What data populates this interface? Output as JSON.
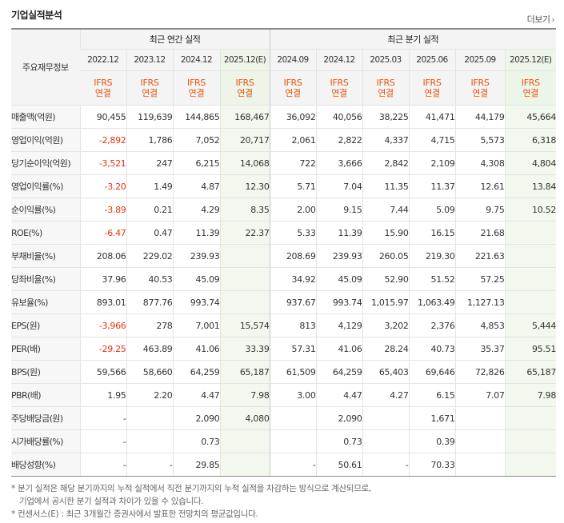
{
  "title": "기업실적분석",
  "more_label": "더보기",
  "header": {
    "row_label": "주요재무정보",
    "annual_label": "최근 연간 실적",
    "quarter_label": "최근 분기 실적",
    "annual_periods": [
      "2022.12",
      "2023.12",
      "2024.12",
      "2025.12(E)"
    ],
    "quarter_periods": [
      "2024.09",
      "2024.12",
      "2025.03",
      "2025.06",
      "2025.09",
      "2025.12(E)"
    ],
    "ifrs_top": "IFRS",
    "ifrs_bottom": "연결"
  },
  "rows": [
    {
      "name": "매출액(억원)",
      "values": [
        "90,455",
        "119,639",
        "144,865",
        "168,467",
        "36,092",
        "40,056",
        "38,225",
        "41,471",
        "44,179",
        "45,664"
      ]
    },
    {
      "name": "영업이익(억원)",
      "values": [
        "-2,892",
        "1,786",
        "7,052",
        "20,717",
        "2,061",
        "2,822",
        "4,337",
        "4,715",
        "5,573",
        "6,318"
      ]
    },
    {
      "name": "당기순이익(억원)",
      "values": [
        "-3,521",
        "247",
        "6,215",
        "14,068",
        "722",
        "3,666",
        "2,842",
        "2,109",
        "4,308",
        "4,804"
      ]
    },
    {
      "name": "영업이익률(%)",
      "values": [
        "-3.20",
        "1.49",
        "4.87",
        "12.30",
        "5.71",
        "7.04",
        "11.35",
        "11.37",
        "12.61",
        "13.84"
      ]
    },
    {
      "name": "순이익률(%)",
      "values": [
        "-3.89",
        "0.21",
        "4.29",
        "8.35",
        "2.00",
        "9.15",
        "7.44",
        "5.09",
        "9.75",
        "10.52"
      ]
    },
    {
      "name": "ROE(%)",
      "values": [
        "-6.47",
        "0.47",
        "11.39",
        "22.37",
        "5.33",
        "11.39",
        "15.90",
        "16.15",
        "21.68",
        ""
      ]
    },
    {
      "name": "부채비율(%)",
      "values": [
        "208.06",
        "229.02",
        "239.93",
        "",
        "208.69",
        "239.93",
        "260.05",
        "219.30",
        "221.63",
        ""
      ]
    },
    {
      "name": "당좌비율(%)",
      "values": [
        "37.96",
        "40.53",
        "45.09",
        "",
        "34.92",
        "45.09",
        "52.90",
        "51.52",
        "57.25",
        ""
      ]
    },
    {
      "name": "유보율(%)",
      "values": [
        "893.01",
        "877.76",
        "993.74",
        "",
        "937.67",
        "993.74",
        "1,015.97",
        "1,063.49",
        "1,127.13",
        ""
      ]
    },
    {
      "name": "EPS(원)",
      "values": [
        "-3,966",
        "278",
        "7,001",
        "15,574",
        "813",
        "4,129",
        "3,202",
        "2,376",
        "4,853",
        "5,444"
      ]
    },
    {
      "name": "PER(배)",
      "values": [
        "-29.25",
        "463.89",
        "41.06",
        "33.39",
        "57.31",
        "41.06",
        "28.24",
        "40.73",
        "35.37",
        "95.51"
      ]
    },
    {
      "name": "BPS(원)",
      "values": [
        "59,566",
        "58,660",
        "64,259",
        "65,187",
        "61,509",
        "64,259",
        "65,403",
        "69,646",
        "72,826",
        "65,187"
      ]
    },
    {
      "name": "PBR(배)",
      "values": [
        "1.95",
        "2.20",
        "4.47",
        "7.98",
        "3.00",
        "4.47",
        "4.27",
        "6.15",
        "7.07",
        "7.98"
      ]
    },
    {
      "name": "주당배당금(원)",
      "values": [
        "-",
        "",
        "2,090",
        "4,080",
        "",
        "2,090",
        "",
        "1,671",
        "",
        ""
      ]
    },
    {
      "name": "시가배당률(%)",
      "values": [
        "-",
        "",
        "0.73",
        "",
        "",
        "0.73",
        "",
        "0.39",
        "",
        ""
      ]
    },
    {
      "name": "배당성향(%)",
      "values": [
        "-",
        "-",
        "29.85",
        "",
        "-",
        "50.61",
        "-",
        "70.33",
        "",
        ""
      ]
    }
  ],
  "notes": {
    "note1_line1": "* 분기 실적은 해당 분기까지의 누적 실적에서 직전 분기까지의 누적 실적을 차감하는 방식으로 계산되므로,",
    "note1_line2": "기업에서 공시한 분기 실적과 차이가 있을 수 있습니다.",
    "note2": "* 컨센서스(E) : 최근 3개월간 증권사에서 발표한 전망치의 평균값입니다."
  },
  "colors": {
    "negative": "#e8330e",
    "ifrs": "#e8530e",
    "estimate_bg": "#f2f8ee"
  }
}
